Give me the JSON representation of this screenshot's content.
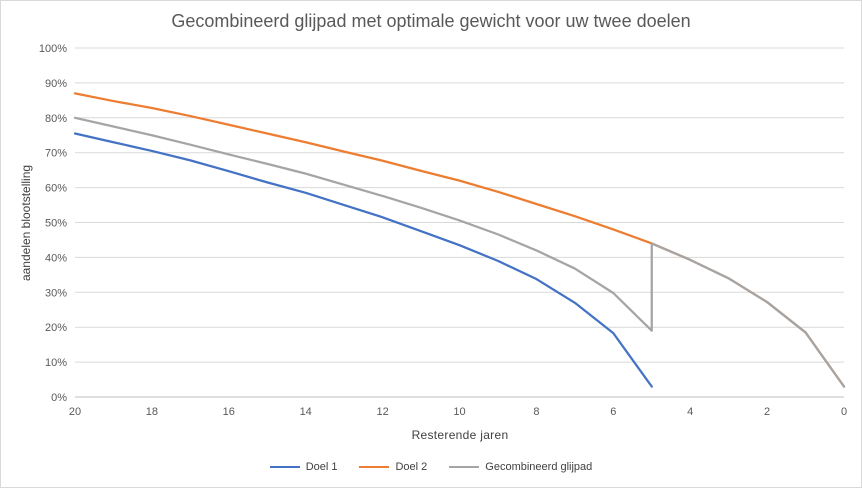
{
  "chart_data": {
    "type": "line",
    "title": "Gecombineerd glijpad met optimale gewicht voor uw twee doelen",
    "xlabel": "Resterende  jaren",
    "ylabel": "aandelen blootstelling",
    "x_ticks": [
      "20",
      "18",
      "16",
      "14",
      "12",
      "10",
      "8",
      "6",
      "4",
      "2",
      "0"
    ],
    "y_ticks": [
      "0%",
      "10%",
      "20%",
      "30%",
      "40%",
      "50%",
      "60%",
      "70%",
      "80%",
      "90%",
      "100%"
    ],
    "xlim": [
      20,
      0
    ],
    "ylim": [
      0,
      100
    ],
    "grid": "horizontal",
    "legend_position": "bottom",
    "series": [
      {
        "name": "Doel 1",
        "color": "#4472c4",
        "points": [
          [
            20,
            75.5
          ],
          [
            19,
            73
          ],
          [
            18,
            70.5
          ],
          [
            17,
            67.8
          ],
          [
            16,
            64.7
          ],
          [
            15,
            61.5
          ],
          [
            14,
            58.5
          ],
          [
            13,
            55
          ],
          [
            12,
            51.5
          ],
          [
            11,
            47.5
          ],
          [
            10,
            43.5
          ],
          [
            9,
            39
          ],
          [
            8,
            33.8
          ],
          [
            7,
            27
          ],
          [
            6,
            18.3
          ],
          [
            5,
            3
          ]
        ]
      },
      {
        "name": "Doel 2",
        "color": "#ed7d31",
        "points": [
          [
            20,
            87
          ],
          [
            19,
            84.8
          ],
          [
            18,
            82.8
          ],
          [
            17,
            80.5
          ],
          [
            16,
            78
          ],
          [
            15,
            75.5
          ],
          [
            14,
            73
          ],
          [
            13,
            70.3
          ],
          [
            12,
            67.7
          ],
          [
            11,
            64.8
          ],
          [
            10,
            62
          ],
          [
            9,
            58.8
          ],
          [
            8,
            55.3
          ],
          [
            7,
            51.8
          ],
          [
            6,
            48
          ],
          [
            5,
            44
          ],
          [
            4,
            39.3
          ],
          [
            3,
            34
          ],
          [
            2,
            27.2
          ],
          [
            1,
            18.5
          ],
          [
            0,
            3
          ]
        ]
      },
      {
        "name": "Gecombineerd glijpad",
        "color": "#a5a5a5",
        "points": [
          [
            20,
            80
          ],
          [
            19,
            77.5
          ],
          [
            18,
            75
          ],
          [
            17,
            72.3
          ],
          [
            16,
            69.5
          ],
          [
            15,
            66.8
          ],
          [
            14,
            64
          ],
          [
            13,
            60.8
          ],
          [
            12,
            57.6
          ],
          [
            11,
            54.2
          ],
          [
            10,
            50.6
          ],
          [
            9,
            46.6
          ],
          [
            8,
            42
          ],
          [
            7,
            36.8
          ],
          [
            6,
            29.8
          ],
          [
            5,
            19
          ],
          [
            5,
            44
          ],
          [
            4,
            39.3
          ],
          [
            3,
            34
          ],
          [
            2,
            27.2
          ],
          [
            1,
            18.5
          ],
          [
            0,
            3
          ]
        ]
      }
    ]
  }
}
